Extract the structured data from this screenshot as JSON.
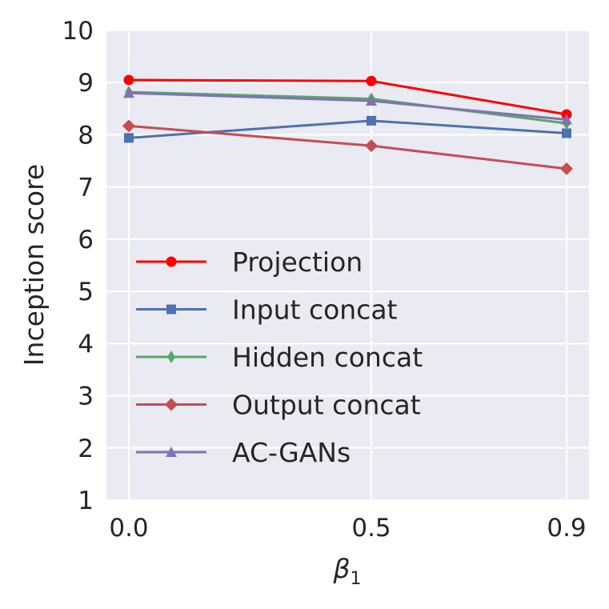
{
  "chart_data": {
    "type": "line",
    "title": "",
    "xlabel": "β",
    "xlabel_subscript": "1",
    "ylabel": "Inception score",
    "x": [
      0.0,
      0.5,
      0.9
    ],
    "x_tick_labels": [
      "0.0",
      "0.5",
      "0.9"
    ],
    "ylim": [
      1,
      10
    ],
    "y_ticks": [
      1,
      2,
      3,
      4,
      5,
      6,
      7,
      8,
      9,
      10
    ],
    "grid": true,
    "legend_position": "lower-left",
    "series": [
      {
        "name": "Projection",
        "color": "#ff0000",
        "marker": "circle",
        "values": [
          9.05,
          9.03,
          8.39
        ]
      },
      {
        "name": "Input concat",
        "color": "#4c72b0",
        "marker": "square",
        "values": [
          7.94,
          8.27,
          8.03
        ]
      },
      {
        "name": "Hidden concat",
        "color": "#55a868",
        "marker": "thin-diamond",
        "values": [
          8.82,
          8.69,
          8.22
        ]
      },
      {
        "name": "Output concat",
        "color": "#c44e52",
        "marker": "diamond",
        "values": [
          8.17,
          7.79,
          7.35
        ]
      },
      {
        "name": "AC-GANs",
        "color": "#8172b2",
        "marker": "triangle",
        "values": [
          8.8,
          8.65,
          8.29
        ]
      }
    ]
  },
  "colors": {
    "plot_background": "#eaeaf2",
    "grid": "#ffffff",
    "text": "#262626"
  }
}
